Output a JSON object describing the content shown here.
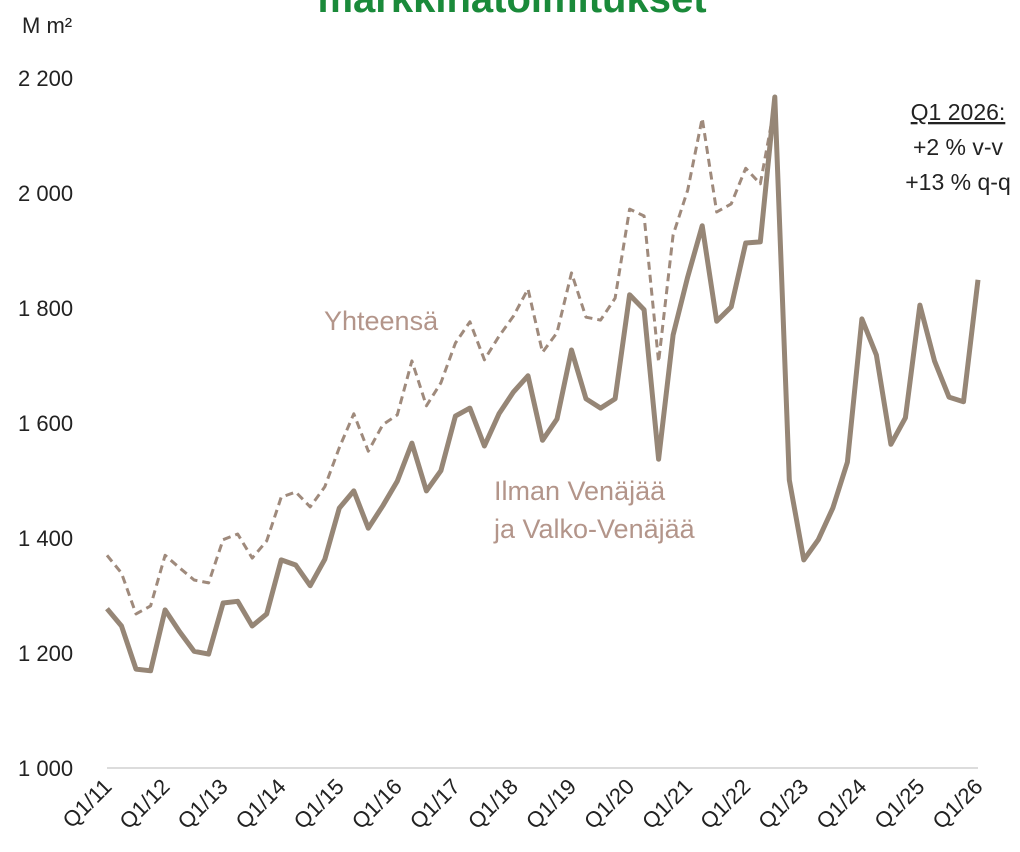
{
  "chart_data": {
    "type": "line",
    "title": "markkinatoimitukset",
    "y_label": "M m²",
    "categories": [
      "Q1/11",
      null,
      null,
      null,
      "Q1/12",
      null,
      null,
      null,
      "Q1/13",
      null,
      null,
      null,
      "Q1/14",
      null,
      null,
      null,
      "Q1/15",
      null,
      null,
      null,
      "Q1/16",
      null,
      null,
      null,
      "Q1/17",
      null,
      null,
      null,
      "Q1/18",
      null,
      null,
      null,
      "Q1/19",
      null,
      null,
      null,
      "Q1/20",
      null,
      null,
      null,
      "Q1/21",
      null,
      null,
      null,
      "Q1/22",
      null,
      null,
      null,
      "Q1/23",
      null,
      null,
      null,
      "Q1/24",
      null,
      null,
      null,
      "Q1/25",
      null,
      null,
      null,
      "Q1/26"
    ],
    "series": [
      {
        "name": "Yhteensä",
        "color": "#9f8a7c",
        "dashed": true,
        "values": [
          1370,
          1339,
          1268,
          1282,
          1370,
          1348,
          1327,
          1322,
          1397,
          1407,
          1365,
          1395,
          1471,
          1480,
          1454,
          1489,
          1557,
          1616,
          1551,
          1597,
          1614,
          1708,
          1630,
          1670,
          1739,
          1776,
          1710,
          1751,
          1786,
          1833,
          1723,
          1757,
          1861,
          1784,
          1779,
          1817,
          1972,
          1960,
          1706,
          1927,
          2005,
          2130,
          1967,
          1981,
          2043,
          2016,
          2153,
          1498,
          null,
          null,
          null,
          null,
          null,
          null,
          null,
          null,
          null,
          null,
          null,
          null,
          null
        ]
      },
      {
        "name": "Ilman Venäjää\nja Valko-Venäjää",
        "color": "#968676",
        "dashed": false,
        "values": [
          1277,
          1247,
          1172,
          1169,
          1275,
          1237,
          1203,
          1198,
          1287,
          1290,
          1247,
          1268,
          1362,
          1353,
          1317,
          1363,
          1452,
          1482,
          1417,
          1456,
          1499,
          1565,
          1482,
          1517,
          1612,
          1626,
          1560,
          1616,
          1654,
          1682,
          1570,
          1607,
          1727,
          1642,
          1626,
          1642,
          1823,
          1797,
          1537,
          1753,
          1854,
          1943,
          1777,
          1802,
          1913,
          1915,
          2167,
          1501,
          1362,
          1397,
          1452,
          1532,
          1781,
          1718,
          1563,
          1609,
          1805,
          1708,
          1645,
          1637,
          1849
        ]
      }
    ],
    "ylim": [
      1000,
      2200
    ],
    "yticks": [
      {
        "value": 1000,
        "label": "1 000"
      },
      {
        "value": 1200,
        "label": "1 200"
      },
      {
        "value": 1400,
        "label": "1 400"
      },
      {
        "value": 1600,
        "label": "1 600"
      },
      {
        "value": 1800,
        "label": "1 800"
      },
      {
        "value": 2000,
        "label": "2 000"
      },
      {
        "value": 2200,
        "label": "2 200"
      }
    ],
    "grid": false,
    "annotations": [
      "Q1 2026:",
      "+2 % v-v",
      "+13 % q-q"
    ]
  }
}
